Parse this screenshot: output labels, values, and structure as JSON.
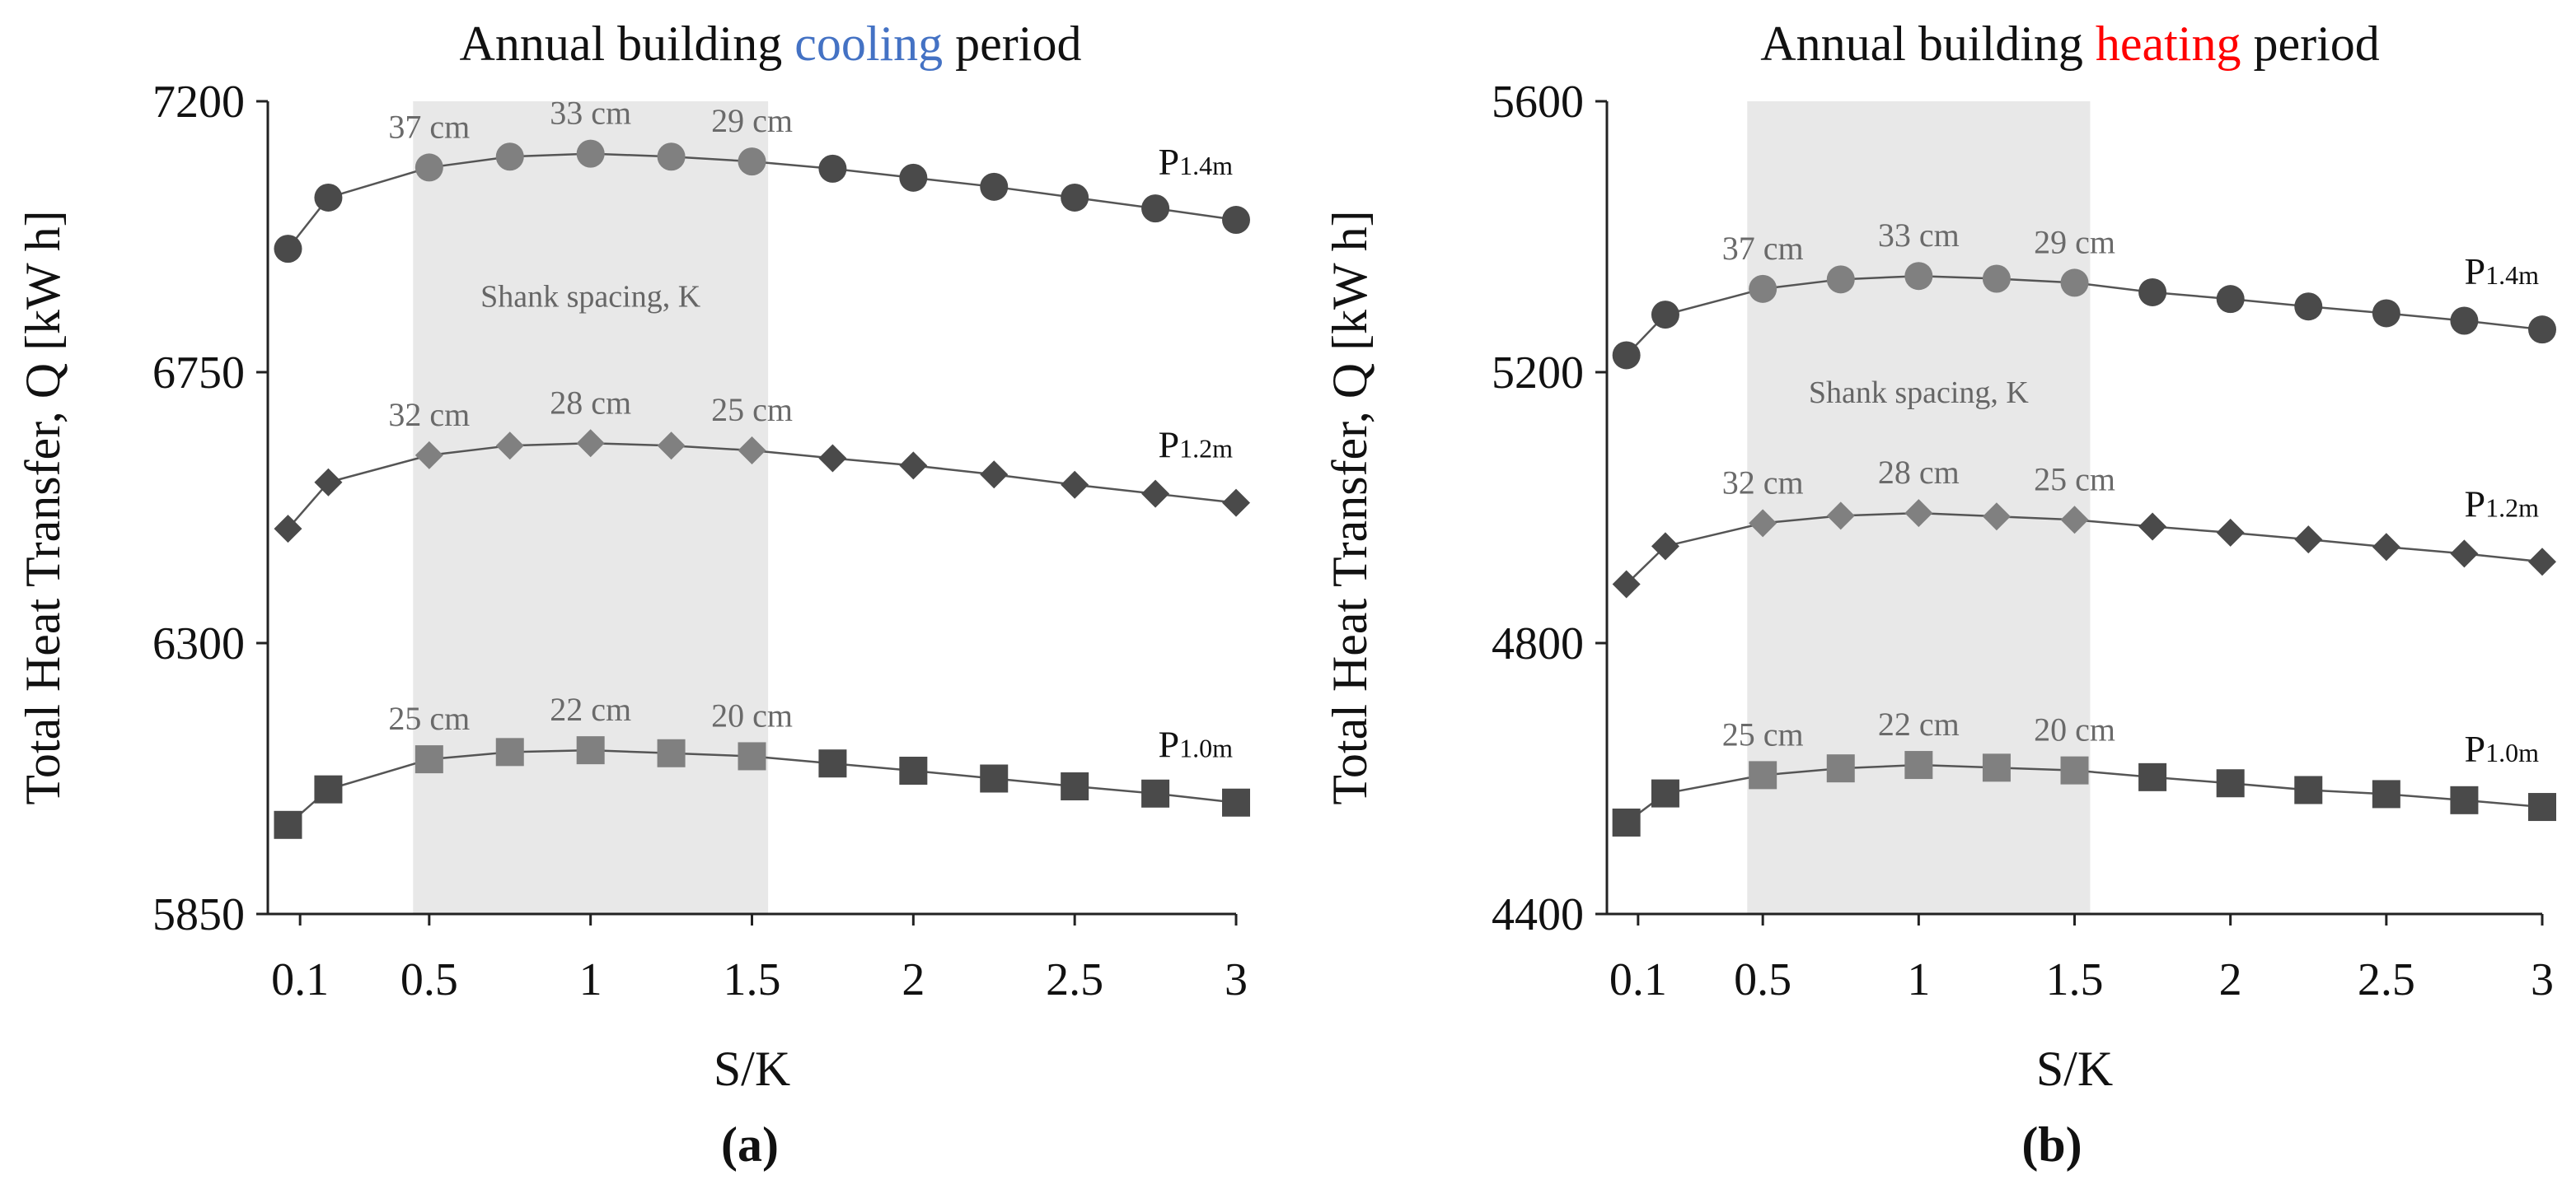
{
  "colors": {
    "cooling": "#4472C4",
    "heating": "#FF0000",
    "shade": "#E8E8E8",
    "dark": "#4a4a4a",
    "light": "#808080"
  },
  "chart_data": [
    {
      "type": "line",
      "panel_label": "(a)",
      "title": {
        "prefix": "Annual building ",
        "highlight": "cooling",
        "suffix": " period",
        "highlight_color": "#4472C4"
      },
      "xlabel": "S/K",
      "ylabel": "Total Heat Transfer, Q [kW h]",
      "xlim": [
        0,
        3
      ],
      "ylim": [
        5850,
        7200
      ],
      "xtick_values": [
        0.1,
        0.5,
        1,
        1.5,
        2,
        2.5,
        3
      ],
      "xtick_labels": [
        "0.1",
        "0.5",
        "1",
        "1.5",
        "2",
        "2.5",
        "3"
      ],
      "yticks": [
        5850,
        6300,
        6750,
        7200
      ],
      "ytick_labels": [
        "5850",
        "6300",
        "6750",
        "7200"
      ],
      "shaded_region": {
        "x": [
          0.45,
          1.55
        ],
        "label": "Shank spacing, K"
      },
      "x": [
        0.0625,
        0.1875,
        0.5,
        0.75,
        1.0,
        1.25,
        1.5,
        1.75,
        2.0,
        2.25,
        2.5,
        2.75,
        3.0
      ],
      "series": [
        {
          "name": "P1.4m",
          "label_main": "P",
          "label_sub": "1.4m",
          "marker": "circle",
          "values": [
            6955,
            7040,
            7090,
            7108,
            7113,
            7108,
            7100,
            7088,
            7073,
            7058,
            7040,
            7022,
            7003
          ],
          "annotations": [
            {
              "x": 0.5,
              "text": "37 cm"
            },
            {
              "x": 1.0,
              "text": "33 cm"
            },
            {
              "x": 1.5,
              "text": "29 cm"
            }
          ]
        },
        {
          "name": "P1.2m",
          "label_main": "P",
          "label_sub": "1.2m",
          "marker": "diamond",
          "values": [
            6490,
            6567,
            6612,
            6628,
            6632,
            6628,
            6620,
            6607,
            6595,
            6580,
            6563,
            6548,
            6533
          ],
          "annotations": [
            {
              "x": 0.5,
              "text": "32 cm"
            },
            {
              "x": 1.0,
              "text": "28 cm"
            },
            {
              "x": 1.5,
              "text": "25 cm"
            }
          ]
        },
        {
          "name": "P1.0m",
          "label_main": "P",
          "label_sub": "1.0m",
          "marker": "square",
          "values": [
            5998,
            6057,
            6107,
            6119,
            6122,
            6117,
            6112,
            6100,
            6088,
            6075,
            6062,
            6050,
            6035
          ],
          "annotations": [
            {
              "x": 0.5,
              "text": "25 cm"
            },
            {
              "x": 1.0,
              "text": "22 cm"
            },
            {
              "x": 1.5,
              "text": "20 cm"
            }
          ]
        }
      ]
    },
    {
      "type": "line",
      "panel_label": "(b)",
      "title": {
        "prefix": "Annual building ",
        "highlight": "heating",
        "suffix": " period",
        "highlight_color": "#FF0000"
      },
      "xlabel": "S/K",
      "ylabel": "Total Heat Transfer, Q [kW h]",
      "xlim": [
        0,
        3
      ],
      "ylim": [
        4400,
        5600
      ],
      "xtick_values": [
        0.1,
        0.5,
        1,
        1.5,
        2,
        2.5,
        3
      ],
      "xtick_labels": [
        "0.1",
        "0.5",
        "1",
        "1.5",
        "2",
        "2.5",
        "3"
      ],
      "yticks": [
        4400,
        4800,
        5200,
        5600
      ],
      "ytick_labels": [
        "4400",
        "4800",
        "5200",
        "5600"
      ],
      "shaded_region": {
        "x": [
          0.45,
          1.55
        ],
        "label": "Shank spacing, K"
      },
      "x": [
        0.0625,
        0.1875,
        0.5,
        0.75,
        1.0,
        1.25,
        1.5,
        1.75,
        2.0,
        2.25,
        2.5,
        2.75,
        3.0
      ],
      "series": [
        {
          "name": "P1.4m",
          "label_main": "P",
          "label_sub": "1.4m",
          "marker": "circle",
          "values": [
            5225,
            5285,
            5323,
            5337,
            5342,
            5338,
            5332,
            5318,
            5308,
            5297,
            5287,
            5276,
            5263
          ],
          "annotations": [
            {
              "x": 0.5,
              "text": "37 cm"
            },
            {
              "x": 1.0,
              "text": "33 cm"
            },
            {
              "x": 1.5,
              "text": "29 cm"
            }
          ]
        },
        {
          "name": "P1.2m",
          "label_main": "P",
          "label_sub": "1.2m",
          "marker": "diamond",
          "values": [
            4887,
            4943,
            4977,
            4988,
            4992,
            4987,
            4982,
            4972,
            4963,
            4953,
            4942,
            4932,
            4920
          ],
          "annotations": [
            {
              "x": 0.5,
              "text": "32 cm"
            },
            {
              "x": 1.0,
              "text": "28 cm"
            },
            {
              "x": 1.5,
              "text": "25 cm"
            }
          ]
        },
        {
          "name": "P1.0m",
          "label_main": "P",
          "label_sub": "1.0m",
          "marker": "square",
          "values": [
            4535,
            4578,
            4605,
            4615,
            4620,
            4616,
            4612,
            4602,
            4593,
            4583,
            4577,
            4568,
            4558
          ],
          "annotations": [
            {
              "x": 0.5,
              "text": "25 cm"
            },
            {
              "x": 1.0,
              "text": "22 cm"
            },
            {
              "x": 1.5,
              "text": "20 cm"
            }
          ]
        }
      ]
    }
  ]
}
